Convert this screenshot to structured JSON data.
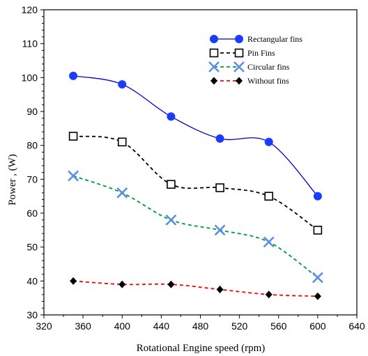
{
  "chart_data": {
    "type": "line",
    "title": "",
    "xlabel": "Rotational Engine speed  (rpm)",
    "ylabel": "Power , (W)",
    "xlim": [
      320,
      640
    ],
    "ylim": [
      30,
      120
    ],
    "xticks": [
      "320",
      "360",
      "400",
      "440",
      "480",
      "520",
      "560",
      "600",
      "640"
    ],
    "yticks": [
      "30",
      "40",
      "50",
      "60",
      "70",
      "80",
      "90",
      "100",
      "110",
      "120"
    ],
    "grid": false,
    "legend_position": "top-right",
    "x": [
      350,
      400,
      450,
      500,
      550,
      600
    ],
    "series": [
      {
        "name": "Rectangular fins",
        "values": [
          100.5,
          98,
          88.5,
          82,
          81,
          65
        ],
        "color": "#0000cc",
        "marker_color": "#1a3cff",
        "marker": "circle",
        "line": "solid"
      },
      {
        "name": "Pin Fins",
        "values": [
          82.7,
          81,
          68.5,
          67.5,
          65,
          55
        ],
        "color": "#000000",
        "marker_color": "#000000",
        "marker": "open-square",
        "line": "dashed"
      },
      {
        "name": "Circular fins",
        "values": [
          71,
          66,
          58,
          55,
          51.5,
          41
        ],
        "color": "#009933",
        "marker_color": "#5b8ee6",
        "marker": "x",
        "line": "dashed"
      },
      {
        "name": "Without fins",
        "values": [
          40,
          39,
          39,
          37.5,
          36,
          35.5
        ],
        "color": "#ff0000",
        "marker_color": "#000000",
        "marker": "diamond",
        "line": "dashed"
      }
    ]
  }
}
